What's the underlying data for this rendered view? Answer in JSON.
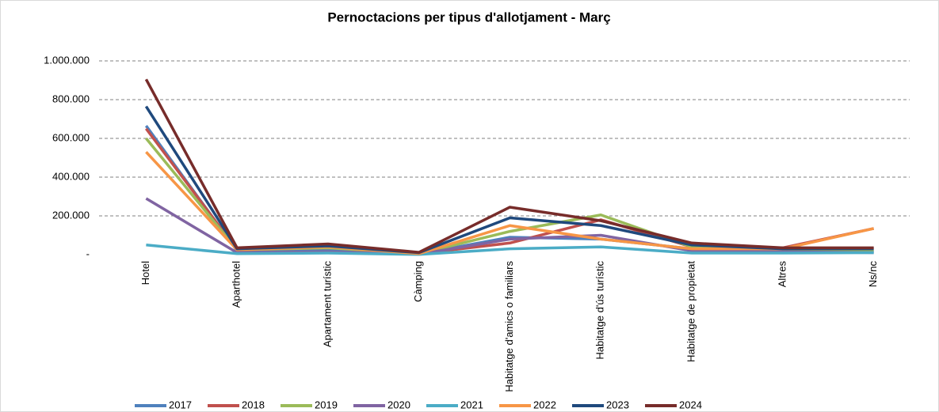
{
  "chart_data": {
    "type": "line",
    "title": "Pernoctacions per tipus d'allotjament - Març",
    "categories": [
      "Hotel",
      "Aparthotel",
      "Apartament turístic",
      "Càmping",
      "Habitatge d'amics o familiars",
      "Habitatge d'ús turístic",
      "Habitatge de propietat",
      "Altres",
      "Ns/nc"
    ],
    "ylim": [
      0,
      1000000
    ],
    "yticks": [
      {
        "value": 0,
        "label": "-"
      },
      {
        "value": 200000,
        "label": "200.000"
      },
      {
        "value": 400000,
        "label": "400.000"
      },
      {
        "value": 600000,
        "label": "600.000"
      },
      {
        "value": 800000,
        "label": "800.000"
      },
      {
        "value": 1000000,
        "label": "1.000.000"
      }
    ],
    "grid": true,
    "legend": "bottom",
    "series": [
      {
        "name": "2017",
        "color": "#4f81bd",
        "values": [
          665000,
          20000,
          25000,
          3000,
          90000,
          80000,
          30000,
          20000,
          15000
        ]
      },
      {
        "name": "2018",
        "color": "#c0504d",
        "values": [
          650000,
          25000,
          35000,
          5000,
          60000,
          180000,
          40000,
          35000,
          135000
        ]
      },
      {
        "name": "2019",
        "color": "#9bbb59",
        "values": [
          600000,
          25000,
          35000,
          5000,
          120000,
          205000,
          40000,
          25000,
          20000
        ]
      },
      {
        "name": "2020",
        "color": "#8064a2",
        "values": [
          290000,
          10000,
          15000,
          2000,
          80000,
          100000,
          20000,
          15000,
          10000
        ]
      },
      {
        "name": "2021",
        "color": "#4bacc6",
        "values": [
          50000,
          5000,
          8000,
          1000,
          30000,
          40000,
          8000,
          8000,
          10000
        ]
      },
      {
        "name": "2022",
        "color": "#f79646",
        "values": [
          530000,
          25000,
          40000,
          5000,
          150000,
          80000,
          30000,
          30000,
          135000
        ]
      },
      {
        "name": "2023",
        "color": "#1f497d",
        "values": [
          765000,
          30000,
          45000,
          10000,
          190000,
          150000,
          50000,
          30000,
          30000
        ]
      },
      {
        "name": "2024",
        "color": "#772c2a",
        "values": [
          905000,
          35000,
          55000,
          12000,
          245000,
          175000,
          60000,
          35000,
          35000
        ]
      }
    ]
  }
}
